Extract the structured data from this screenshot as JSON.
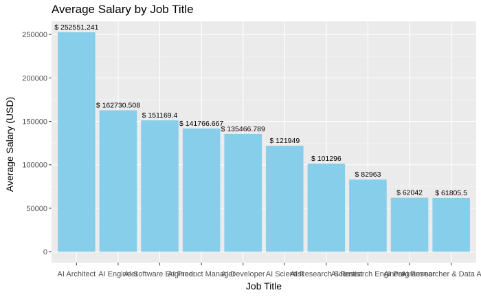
{
  "chart_data": {
    "type": "bar",
    "title": "Average Salary by Job Title",
    "xlabel": "Job Title",
    "ylabel": "Average Salary (USD)",
    "categories": [
      "AI Architect",
      "AI Engineer",
      "AI Software Engineer",
      "AI Product Manager",
      "AI Developer",
      "AI Scientist",
      "AI Research Scientist",
      "AI Research Engineer",
      "AI Programmer",
      "AI Researcher & Data Analyst"
    ],
    "values": [
      252551.241,
      162730.508,
      151169.4,
      141766.667,
      135466.789,
      121949,
      101296,
      82963,
      62042,
      61805.5
    ],
    "data_labels": [
      "$ 252551.241",
      "$ 162730.508",
      "$ 151169.4",
      "$ 141766.667",
      "$ 135466.789",
      "$ 121949",
      "$ 101296",
      "$ 82963",
      "$ 62042",
      "$ 61805.5"
    ],
    "y_ticks": [
      0,
      50000,
      100000,
      150000,
      200000,
      250000
    ],
    "ylim": [
      -12627.56,
      265178.8
    ],
    "grid": true,
    "colors": {
      "bar": "#87CEEB",
      "panel": "#EBEBEB",
      "grid_major": "#FFFFFF"
    }
  }
}
